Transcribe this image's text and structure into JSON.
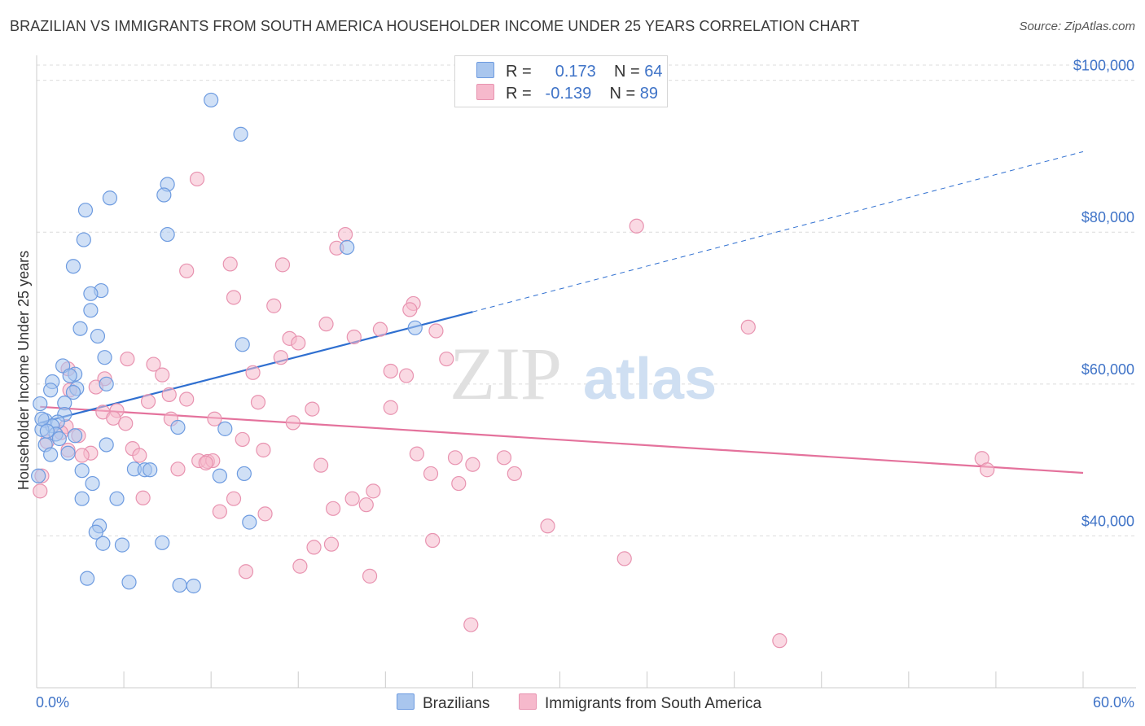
{
  "title": "BRAZILIAN VS IMMIGRANTS FROM SOUTH AMERICA HOUSEHOLDER INCOME UNDER 25 YEARS CORRELATION CHART",
  "source": "Source: ZipAtlas.com",
  "watermark": {
    "zip": "ZIP",
    "atlas": "atlas"
  },
  "colors": {
    "blue_fill": "#a9c6ee",
    "blue_stroke": "#6d9be0",
    "blue_line": "#2f6fd0",
    "pink_fill": "#f6b9cc",
    "pink_stroke": "#e893b0",
    "pink_line": "#e4729c",
    "tick_text": "#3f73c7",
    "grid": "#dcdcdc"
  },
  "legend": {
    "rows": [
      {
        "r_label": "R =",
        "r_value": "0.173",
        "n_label": "N =",
        "n_value": "64"
      },
      {
        "r_label": "R =",
        "r_value": "-0.139",
        "n_label": "N =",
        "n_value": "89"
      }
    ]
  },
  "bottom_legend": [
    "Brazilians",
    "Immigrants from South America"
  ],
  "chart_data": {
    "type": "scatter",
    "ylabel": "Householder Income Under 25 years",
    "xlim": [
      0,
      60
    ],
    "ylim": [
      20000,
      102000
    ],
    "x_tick_labels": [
      "0.0%",
      "60.0%"
    ],
    "y_ticks": [
      40000,
      60000,
      80000,
      100000
    ],
    "y_tick_labels": [
      "$40,000",
      "$60,000",
      "$80,000",
      "$100,000"
    ],
    "grid": true,
    "series": [
      {
        "name": "Brazilians",
        "color": "blue",
        "trend": {
          "x0": 0.2,
          "y0": 54900,
          "x1": 25,
          "y1": 69500,
          "dashed_to_x": 60,
          "dashed_to_y": 90600
        },
        "points": [
          [
            10.0,
            97400
          ],
          [
            11.7,
            92900
          ],
          [
            7.5,
            86300
          ],
          [
            4.2,
            84500
          ],
          [
            2.8,
            82900
          ],
          [
            7.3,
            84900
          ],
          [
            7.5,
            79700
          ],
          [
            2.7,
            79000
          ],
          [
            17.8,
            78000
          ],
          [
            2.1,
            75500
          ],
          [
            3.7,
            72300
          ],
          [
            3.1,
            71900
          ],
          [
            3.1,
            69700
          ],
          [
            2.5,
            67300
          ],
          [
            21.7,
            67400
          ],
          [
            3.5,
            66300
          ],
          [
            11.8,
            65200
          ],
          [
            3.9,
            63500
          ],
          [
            1.5,
            62400
          ],
          [
            2.2,
            61300
          ],
          [
            0.9,
            60300
          ],
          [
            2.3,
            59400
          ],
          [
            0.8,
            59200
          ],
          [
            4.0,
            60000
          ],
          [
            2.1,
            58900
          ],
          [
            1.6,
            57500
          ],
          [
            0.2,
            57400
          ],
          [
            1.6,
            56000
          ],
          [
            0.5,
            55200
          ],
          [
            1.2,
            55000
          ],
          [
            0.9,
            54500
          ],
          [
            0.3,
            54000
          ],
          [
            1.1,
            53400
          ],
          [
            2.2,
            53200
          ],
          [
            8.1,
            54300
          ],
          [
            10.8,
            54100
          ],
          [
            1.3,
            52800
          ],
          [
            0.5,
            52000
          ],
          [
            4.0,
            52000
          ],
          [
            0.8,
            50700
          ],
          [
            1.8,
            50900
          ],
          [
            5.6,
            48800
          ],
          [
            6.2,
            48700
          ],
          [
            6.5,
            48700
          ],
          [
            2.6,
            48600
          ],
          [
            10.5,
            47900
          ],
          [
            11.9,
            48200
          ],
          [
            0.1,
            47900
          ],
          [
            3.2,
            46900
          ],
          [
            2.6,
            44900
          ],
          [
            4.6,
            44900
          ],
          [
            12.2,
            41800
          ],
          [
            3.6,
            41300
          ],
          [
            3.4,
            40500
          ],
          [
            3.8,
            39000
          ],
          [
            4.9,
            38800
          ],
          [
            7.2,
            39100
          ],
          [
            2.9,
            34400
          ],
          [
            5.3,
            33900
          ],
          [
            8.2,
            33500
          ],
          [
            9.0,
            33400
          ],
          [
            0.3,
            55400
          ],
          [
            0.6,
            53800
          ],
          [
            1.9,
            61100
          ]
        ]
      },
      {
        "name": "Immigrants from South America",
        "color": "pink",
        "trend": {
          "x0": 0.2,
          "y0": 57000,
          "x1": 60,
          "y1": 48300
        },
        "points": [
          [
            9.2,
            87000
          ],
          [
            34.4,
            80800
          ],
          [
            17.7,
            79700
          ],
          [
            17.2,
            77900
          ],
          [
            11.1,
            75800
          ],
          [
            14.1,
            75700
          ],
          [
            8.6,
            74900
          ],
          [
            11.3,
            71400
          ],
          [
            13.6,
            70300
          ],
          [
            21.6,
            70600
          ],
          [
            21.4,
            69800
          ],
          [
            40.8,
            67500
          ],
          [
            16.6,
            67900
          ],
          [
            19.7,
            67200
          ],
          [
            22.9,
            67000
          ],
          [
            18.2,
            66200
          ],
          [
            14.5,
            66000
          ],
          [
            15.0,
            65400
          ],
          [
            14.0,
            63500
          ],
          [
            23.5,
            63300
          ],
          [
            5.2,
            63300
          ],
          [
            6.7,
            62600
          ],
          [
            1.8,
            62000
          ],
          [
            12.4,
            61500
          ],
          [
            20.3,
            61700
          ],
          [
            21.2,
            61100
          ],
          [
            7.2,
            61200
          ],
          [
            3.9,
            60700
          ],
          [
            3.4,
            59600
          ],
          [
            1.9,
            59200
          ],
          [
            7.6,
            58600
          ],
          [
            8.6,
            58000
          ],
          [
            6.4,
            57700
          ],
          [
            12.7,
            57600
          ],
          [
            20.3,
            56900
          ],
          [
            15.8,
            56700
          ],
          [
            4.6,
            56500
          ],
          [
            3.8,
            56300
          ],
          [
            4.4,
            55500
          ],
          [
            10.2,
            55400
          ],
          [
            7.7,
            55400
          ],
          [
            5.1,
            54800
          ],
          [
            14.7,
            54900
          ],
          [
            1.7,
            54400
          ],
          [
            1.4,
            53600
          ],
          [
            2.4,
            53200
          ],
          [
            11.8,
            52700
          ],
          [
            0.6,
            52400
          ],
          [
            5.5,
            51500
          ],
          [
            13.0,
            51300
          ],
          [
            1.8,
            51300
          ],
          [
            3.1,
            50900
          ],
          [
            2.6,
            50600
          ],
          [
            21.8,
            50800
          ],
          [
            5.9,
            50600
          ],
          [
            24.0,
            50300
          ],
          [
            26.8,
            50300
          ],
          [
            9.3,
            49900
          ],
          [
            9.8,
            49800
          ],
          [
            10.1,
            49900
          ],
          [
            9.7,
            49600
          ],
          [
            16.3,
            49300
          ],
          [
            25.0,
            49400
          ],
          [
            8.1,
            48800
          ],
          [
            22.6,
            48200
          ],
          [
            27.4,
            48200
          ],
          [
            54.2,
            50200
          ],
          [
            54.5,
            48700
          ],
          [
            24.2,
            46900
          ],
          [
            19.3,
            45900
          ],
          [
            18.1,
            44900
          ],
          [
            6.1,
            45000
          ],
          [
            11.3,
            44900
          ],
          [
            18.9,
            44100
          ],
          [
            10.5,
            43200
          ],
          [
            13.1,
            42900
          ],
          [
            17.0,
            43600
          ],
          [
            29.3,
            41300
          ],
          [
            22.7,
            39400
          ],
          [
            16.9,
            38900
          ],
          [
            15.9,
            38500
          ],
          [
            33.7,
            37000
          ],
          [
            15.1,
            36000
          ],
          [
            12.0,
            35300
          ],
          [
            19.1,
            34700
          ],
          [
            24.9,
            28300
          ],
          [
            42.6,
            26200
          ],
          [
            0.3,
            47900
          ],
          [
            0.2,
            45900
          ]
        ]
      }
    ]
  }
}
